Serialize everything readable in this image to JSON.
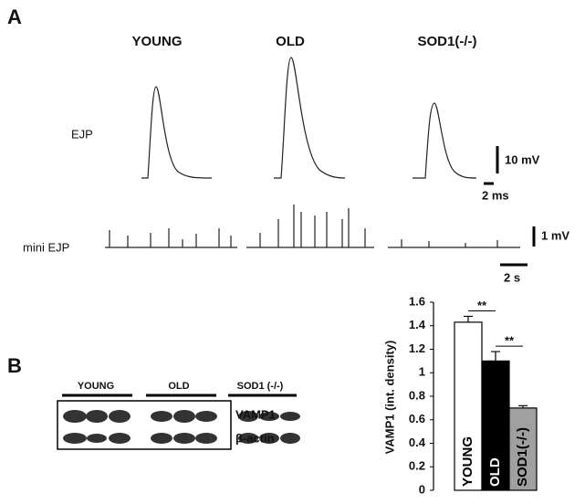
{
  "panel_a": {
    "label": "A",
    "conditions": [
      "YOUNG",
      "OLD",
      "SOD1(-/-)"
    ],
    "row_labels": [
      "EJP",
      "mini EJP"
    ],
    "scale_bars": [
      "10 mV",
      "2 ms",
      "1 mV",
      "2 s"
    ]
  },
  "panel_b": {
    "label": "B",
    "blot_groups": [
      "YOUNG",
      "OLD",
      "SOD1 (-/-)"
    ],
    "blot_rows": [
      "VAMP1",
      "β-actin"
    ]
  },
  "chart_data": {
    "type": "bar",
    "ylabel": "VAMP1 (int. density)",
    "categories": [
      "YOUNG",
      "OLD",
      "SOD1(-/-)"
    ],
    "values": [
      1.43,
      1.1,
      0.7
    ],
    "errors": [
      0.05,
      0.08,
      0.02
    ],
    "colors": [
      "#ffffff",
      "#000000",
      "#a0a0a0"
    ],
    "label_colors": [
      "#000000",
      "#ffffff",
      "#000000"
    ],
    "ylim": [
      0,
      1.6
    ],
    "yticks": [
      0,
      0.2,
      0.4,
      0.6,
      0.8,
      1,
      1.2,
      1.4,
      1.6
    ],
    "annotations": [
      "**",
      "**"
    ]
  }
}
